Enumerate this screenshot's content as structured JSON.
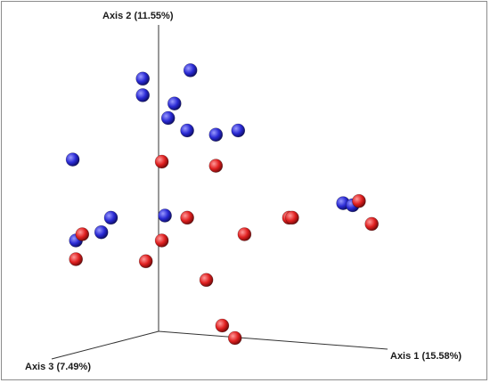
{
  "chart_data": {
    "type": "scatter",
    "title": "",
    "axes": {
      "x": {
        "label": "Axis 1 (15.58%)"
      },
      "y": {
        "label": "Axis 2 (11.55%)"
      },
      "z": {
        "label": "Axis 3 (7.49%)"
      }
    },
    "grid": false,
    "legend": "none",
    "series": [
      {
        "color": "#2a2ad4",
        "points": [
          {
            "x": -0.05,
            "y": 0.78
          },
          {
            "x": -0.05,
            "y": 0.7
          },
          {
            "x": 0.1,
            "y": 0.82
          },
          {
            "x": 0.05,
            "y": 0.66
          },
          {
            "x": 0.03,
            "y": 0.59
          },
          {
            "x": 0.09,
            "y": 0.53
          },
          {
            "x": 0.18,
            "y": 0.51
          },
          {
            "x": 0.25,
            "y": 0.53
          },
          {
            "x": -0.27,
            "y": 0.39
          },
          {
            "x": -0.15,
            "y": 0.11
          },
          {
            "x": -0.18,
            "y": 0.04
          },
          {
            "x": -0.26,
            "y": 0.0
          },
          {
            "x": 0.02,
            "y": 0.12
          },
          {
            "x": 0.58,
            "y": 0.18
          },
          {
            "x": 0.61,
            "y": 0.17
          }
        ]
      },
      {
        "color": "#e02020",
        "points": [
          {
            "x": 0.01,
            "y": 0.38
          },
          {
            "x": 0.18,
            "y": 0.36
          },
          {
            "x": -0.24,
            "y": 0.03
          },
          {
            "x": -0.26,
            "y": -0.09
          },
          {
            "x": 0.01,
            "y": 0.0
          },
          {
            "x": 0.09,
            "y": 0.11
          },
          {
            "x": 0.27,
            "y": 0.03
          },
          {
            "x": 0.41,
            "y": 0.11
          },
          {
            "x": 0.42,
            "y": 0.11
          },
          {
            "x": 0.63,
            "y": 0.19
          },
          {
            "x": 0.67,
            "y": 0.08
          },
          {
            "x": -0.04,
            "y": -0.1
          },
          {
            "x": 0.15,
            "y": -0.19
          },
          {
            "x": 0.2,
            "y": -0.41
          },
          {
            "x": 0.24,
            "y": -0.47
          }
        ]
      }
    ]
  }
}
